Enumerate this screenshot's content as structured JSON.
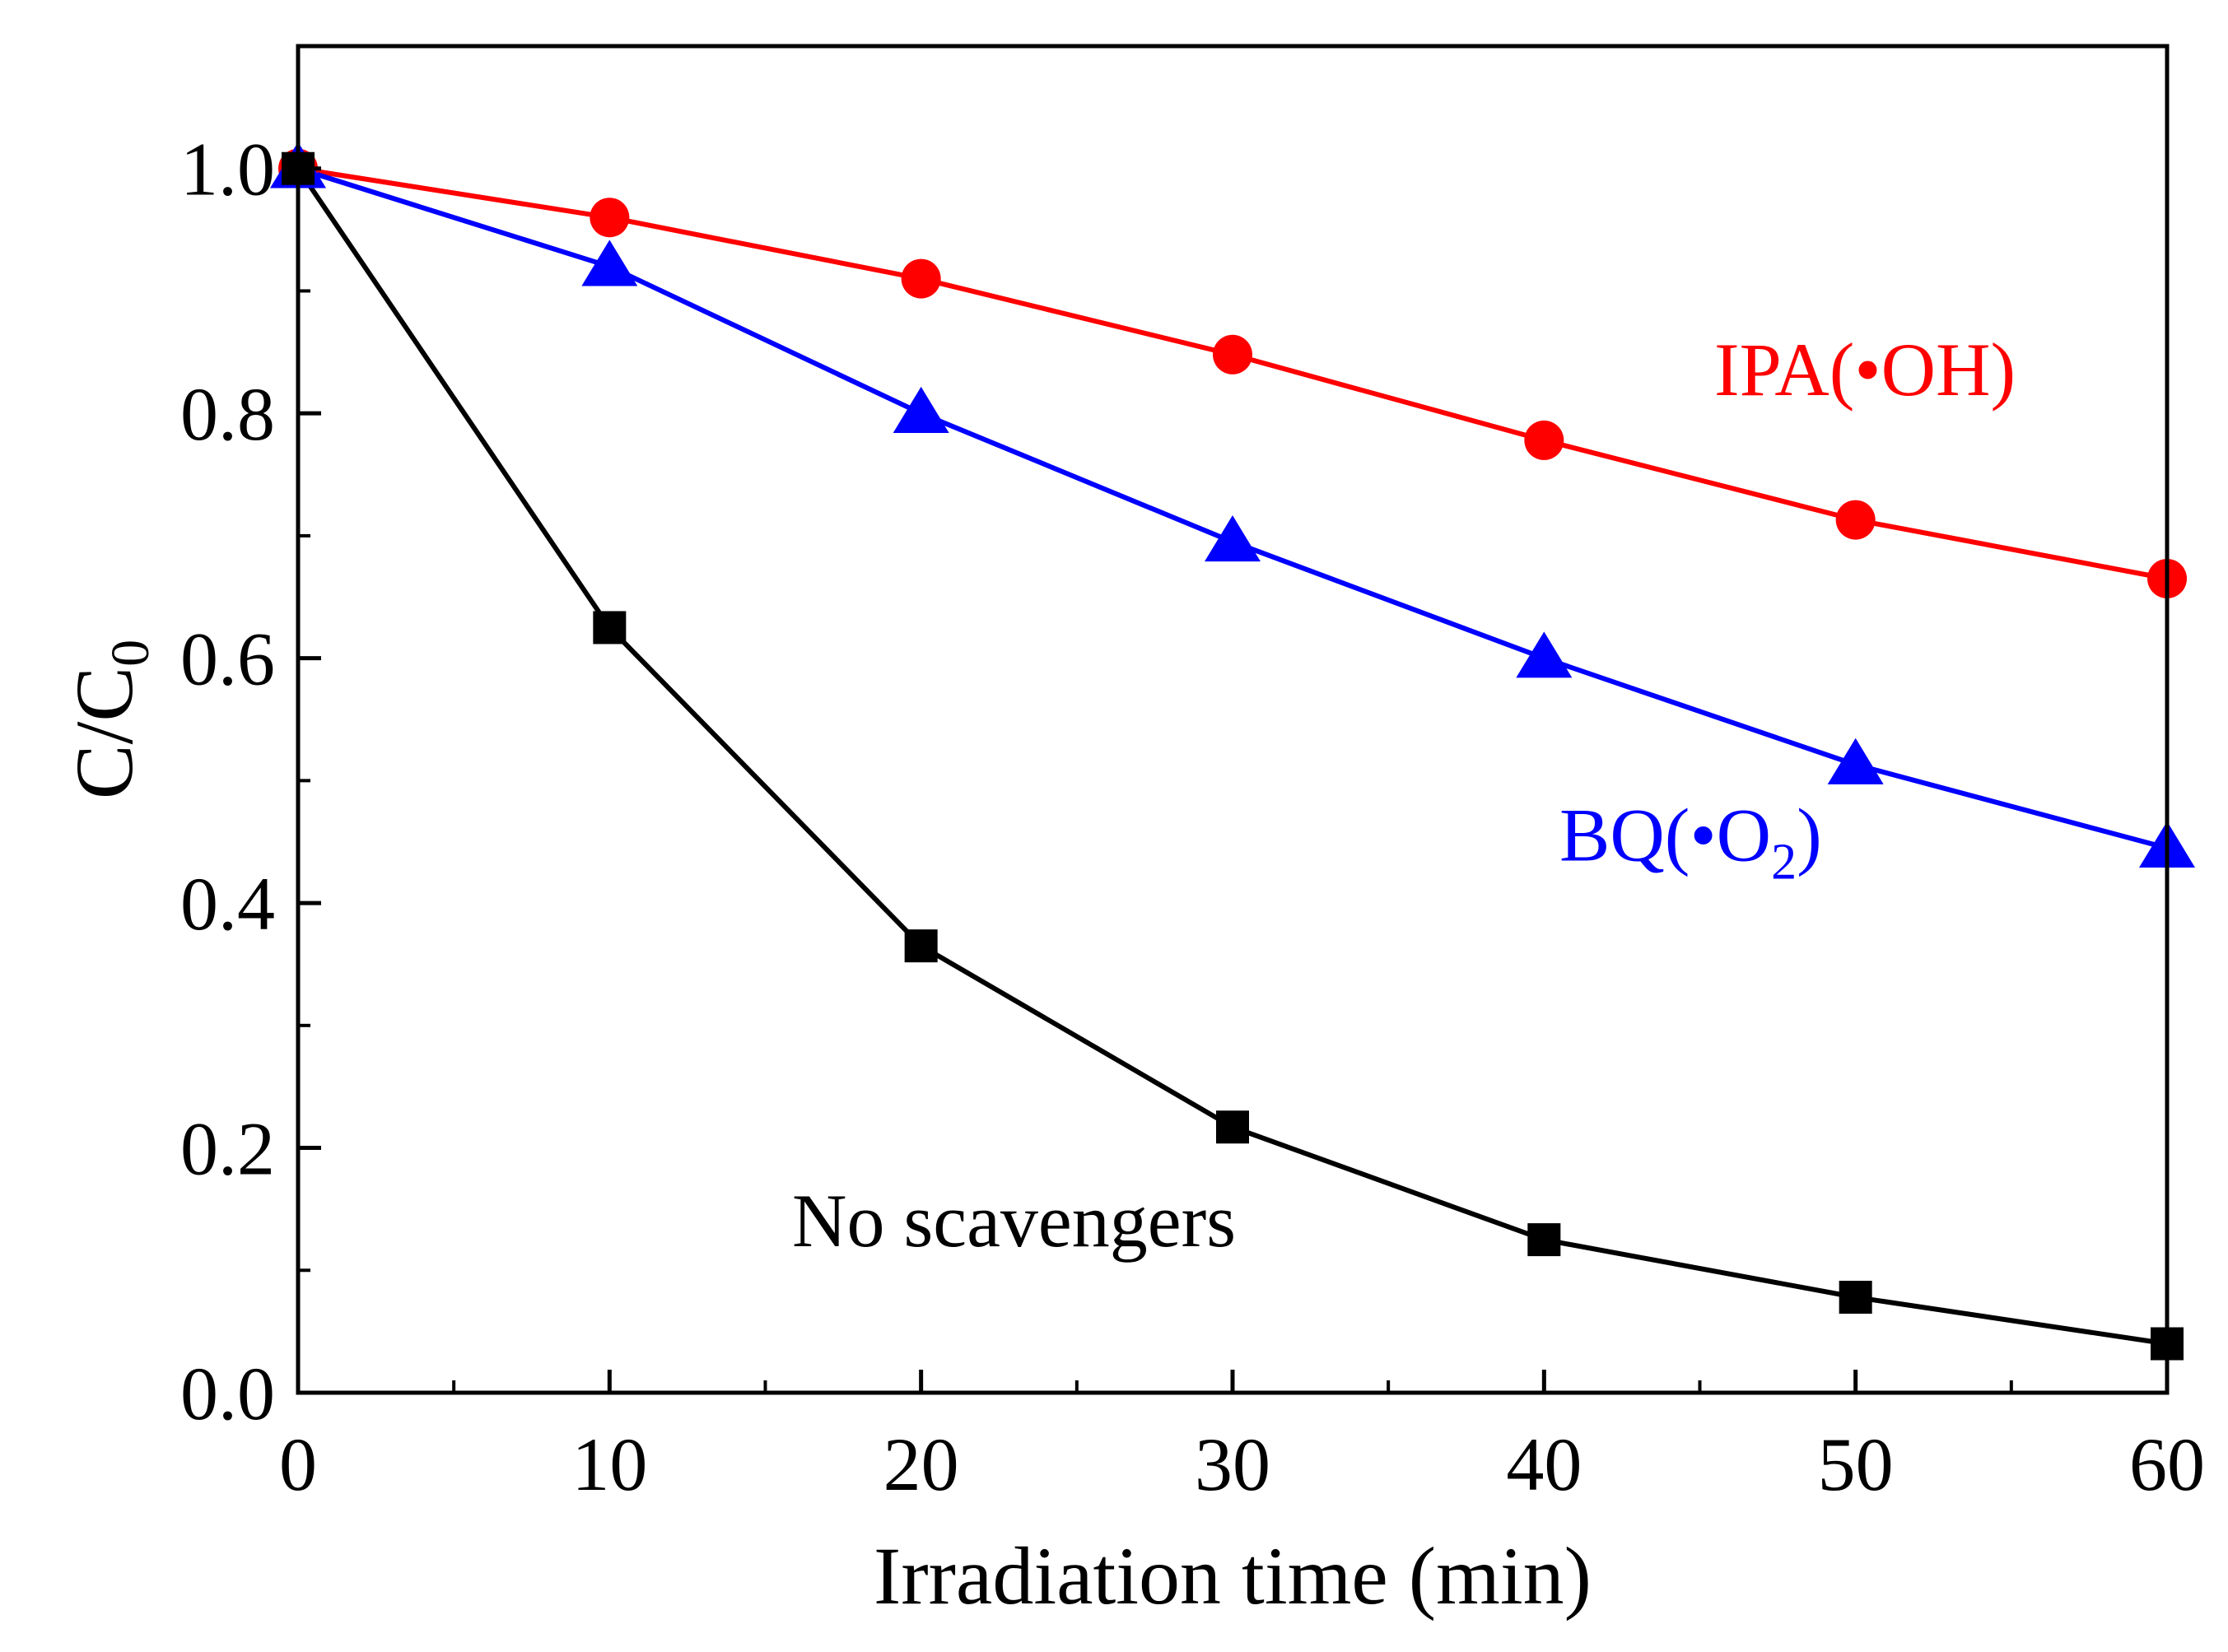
{
  "chart_data": {
    "type": "line",
    "xlabel": "Irradiation time (min)",
    "ylabel": {
      "main": "C/C",
      "sub": "0"
    },
    "xlim": [
      0,
      60
    ],
    "ylim": [
      0,
      1.1
    ],
    "x_ticks": [
      0,
      10,
      20,
      30,
      40,
      50,
      60
    ],
    "x_tick_labels": [
      "0",
      "10",
      "20",
      "30",
      "40",
      "50",
      "60"
    ],
    "y_ticks": [
      0,
      0.2,
      0.4,
      0.6,
      0.8,
      1.0
    ],
    "y_tick_labels": [
      "0.0",
      "0.2",
      "0.4",
      "0.6",
      "0.8",
      "1.0"
    ],
    "grid": false,
    "x": [
      0,
      10,
      20,
      30,
      40,
      50,
      60
    ],
    "series": [
      {
        "label": "IPA(•OH)",
        "color": "#ff0000",
        "marker": "circle",
        "values": [
          1.0,
          0.96,
          0.91,
          0.848,
          0.778,
          0.713,
          0.665
        ]
      },
      {
        "label": {
          "main": "BQ(•O",
          "sub": "2",
          "tail": ")"
        },
        "color": "#0000ff",
        "marker": "triangle",
        "values": [
          1.0,
          0.92,
          0.8,
          0.695,
          0.6,
          0.513,
          0.445
        ]
      },
      {
        "label": "No scavengers",
        "color": "#000000",
        "marker": "square",
        "values": [
          1.0,
          0.625,
          0.365,
          0.217,
          0.125,
          0.078,
          0.04
        ]
      }
    ]
  }
}
